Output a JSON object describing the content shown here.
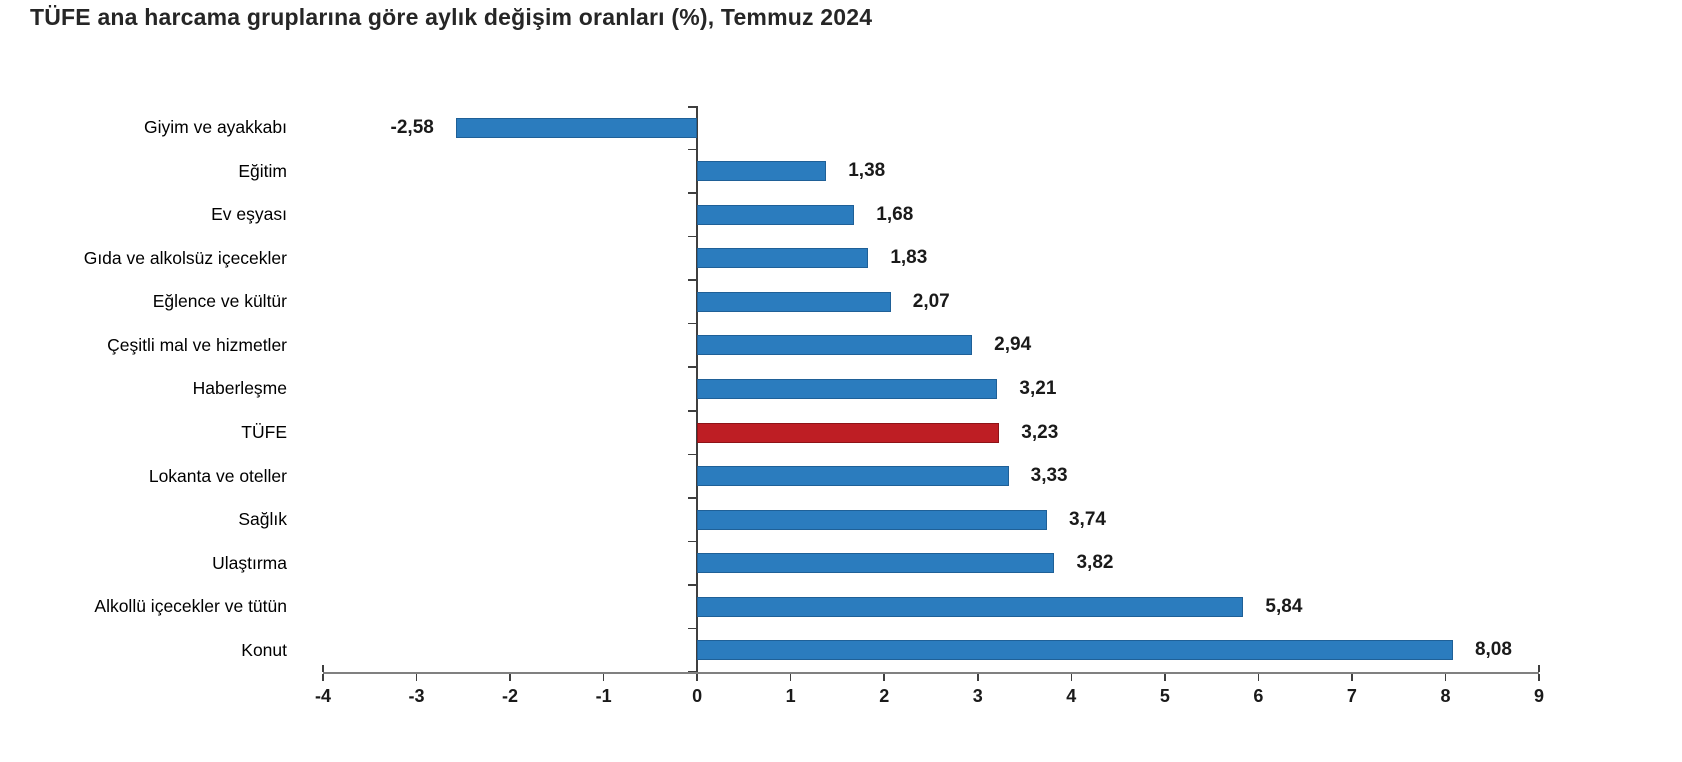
{
  "title": "TÜFE ana harcama gruplarına göre aylık değişim oranları (%), Temmuz 2024",
  "colors": {
    "bar": "#2B7CBE",
    "bar_border": "#1F6097",
    "highlight": "#BE1E24",
    "highlight_border": "#8E1317",
    "axis_line": "#808080",
    "tick": "#3F3F3F",
    "text": "#1a1a1a"
  },
  "chart_data": {
    "type": "bar",
    "orientation": "horizontal",
    "title": "TÜFE ana harcama gruplarına göre aylık değişim oranları (%), Temmuz 2024",
    "categories": [
      "Giyim ve ayakkabı",
      "Eğitim",
      "Ev eşyası",
      "Gıda ve alkolsüz içecekler",
      "Eğlence ve kültür",
      "Çeşitli mal ve hizmetler",
      "Haberleşme",
      "TÜFE",
      "Lokanta ve oteller",
      "Sağlık",
      "Ulaştırma",
      "Alkollü içecekler ve tütün",
      "Konut"
    ],
    "values": [
      -2.58,
      1.38,
      1.68,
      1.83,
      2.07,
      2.94,
      3.21,
      3.23,
      3.33,
      3.74,
      3.82,
      5.84,
      8.08
    ],
    "value_labels": [
      "-2,58",
      "1,38",
      "1,68",
      "1,83",
      "2,07",
      "2,94",
      "3,21",
      "3,23",
      "3,33",
      "3,74",
      "3,82",
      "5,84",
      "8,08"
    ],
    "highlight_category": "TÜFE",
    "xlim": [
      -4,
      9
    ],
    "x_ticks": [
      -4,
      -3,
      -2,
      -1,
      0,
      1,
      2,
      3,
      4,
      5,
      6,
      7,
      8,
      9
    ],
    "x_tick_labels": [
      "-4",
      "-3",
      "-2",
      "-1",
      "0",
      "1",
      "2",
      "3",
      "4",
      "5",
      "6",
      "7",
      "8",
      "9"
    ],
    "grid": false,
    "legend": null,
    "unit": "%"
  }
}
